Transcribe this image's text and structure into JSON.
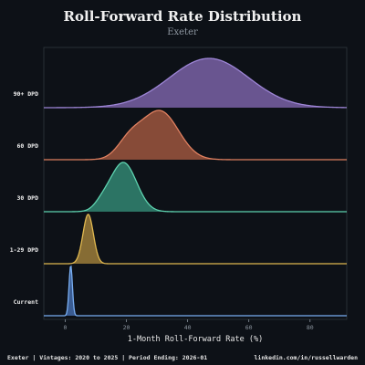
{
  "chart_data": {
    "type": "area",
    "title": "Roll-Forward Rate Distribution",
    "subtitle": "Exeter",
    "xlabel": "1-Month Roll-Forward Rate (%)",
    "ylabel": "",
    "xlim": [
      -7,
      92
    ],
    "x_ticks": [
      0,
      20,
      40,
      60,
      80
    ],
    "grid": false,
    "series": [
      {
        "name": "90+ DPD",
        "color": "#9d85d6",
        "fill": "#6f5a97",
        "components": [
          {
            "mu": 47,
            "sigma": 13,
            "w": 1.0
          }
        ],
        "points": [
          [
            0,
            0.01
          ],
          [
            10,
            0.04
          ],
          [
            20,
            0.2
          ],
          [
            30,
            0.5
          ],
          [
            40,
            0.9
          ],
          [
            47,
            1.0
          ],
          [
            55,
            0.85
          ],
          [
            65,
            0.45
          ],
          [
            75,
            0.13
          ],
          [
            85,
            0.02
          ]
        ]
      },
      {
        "name": "60 DPD",
        "color": "#e08060",
        "fill": "#8e4f3a",
        "components": [
          {
            "mu": 31,
            "sigma": 6,
            "w": 1.0
          },
          {
            "mu": 21,
            "sigma": 4,
            "w": 0.35
          }
        ],
        "points": [
          [
            10,
            0.03
          ],
          [
            15,
            0.12
          ],
          [
            20,
            0.45
          ],
          [
            25,
            0.62
          ],
          [
            31,
            1.0
          ],
          [
            35,
            0.82
          ],
          [
            40,
            0.38
          ],
          [
            45,
            0.08
          ],
          [
            50,
            0.01
          ]
        ]
      },
      {
        "name": "30 DPD",
        "color": "#5ed3b0",
        "fill": "#2e7a68",
        "components": [
          {
            "mu": 19,
            "sigma": 4.3,
            "w": 1.0
          },
          {
            "mu": 12,
            "sigma": 2.5,
            "w": 0.12
          }
        ],
        "points": [
          [
            8,
            0.03
          ],
          [
            12,
            0.25
          ],
          [
            16,
            0.75
          ],
          [
            19,
            1.0
          ],
          [
            22,
            0.85
          ],
          [
            26,
            0.35
          ],
          [
            30,
            0.05
          ],
          [
            35,
            0.0
          ]
        ]
      },
      {
        "name": "1-29 DPD",
        "color": "#e0b850",
        "fill": "#8d7236",
        "components": [
          {
            "mu": 7.5,
            "sigma": 1.7,
            "w": 1.0
          }
        ],
        "points": [
          [
            3,
            0.02
          ],
          [
            5,
            0.35
          ],
          [
            7.5,
            1.0
          ],
          [
            10,
            0.35
          ],
          [
            12,
            0.02
          ]
        ]
      },
      {
        "name": "Current",
        "color": "#79aef2",
        "fill": "#3d6199",
        "components": [
          {
            "mu": 1.8,
            "sigma": 0.55,
            "w": 1.0
          }
        ],
        "points": [
          [
            0,
            0.0
          ],
          [
            1,
            0.35
          ],
          [
            1.8,
            1.0
          ],
          [
            2.6,
            0.35
          ],
          [
            3.5,
            0.0
          ]
        ]
      }
    ]
  },
  "footer": {
    "left": "Exeter | Vintages: 2020 to 2025 | Period Ending: 2026-01",
    "right": "linkedin.com/in/russellwarden"
  }
}
